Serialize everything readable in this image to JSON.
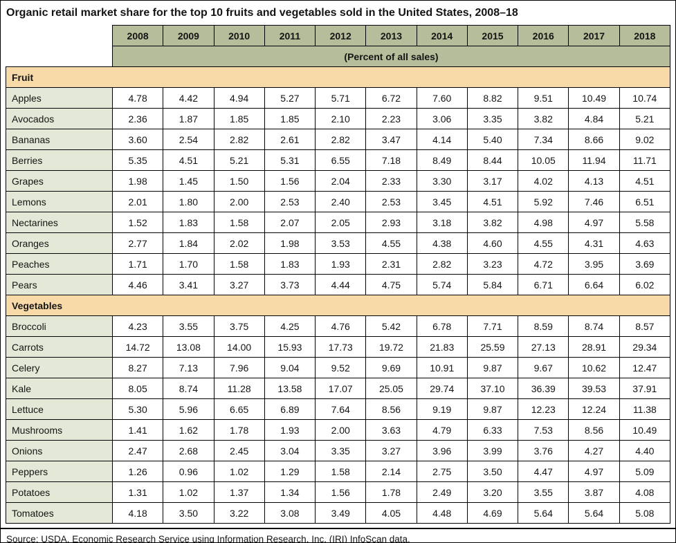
{
  "chart_data": {
    "type": "table",
    "title": "Organic retail market share for the top 10 fruits and vegetables sold in the United States, 2008–18",
    "unit_label": "(Percent of all sales)",
    "columns": [
      "2008",
      "2009",
      "2010",
      "2011",
      "2012",
      "2013",
      "2014",
      "2015",
      "2016",
      "2017",
      "2018"
    ],
    "sections": [
      {
        "name": "Fruit",
        "rows": [
          {
            "label": "Apples",
            "values": [
              4.78,
              4.42,
              4.94,
              5.27,
              5.71,
              6.72,
              7.6,
              8.82,
              9.51,
              10.49,
              10.74
            ]
          },
          {
            "label": "Avocados",
            "values": [
              2.36,
              1.87,
              1.85,
              1.85,
              2.1,
              2.23,
              3.06,
              3.35,
              3.82,
              4.84,
              5.21
            ]
          },
          {
            "label": "Bananas",
            "values": [
              3.6,
              2.54,
              2.82,
              2.61,
              2.82,
              3.47,
              4.14,
              5.4,
              7.34,
              8.66,
              9.02
            ]
          },
          {
            "label": "Berries",
            "values": [
              5.35,
              4.51,
              5.21,
              5.31,
              6.55,
              7.18,
              8.49,
              8.44,
              10.05,
              11.94,
              11.71
            ]
          },
          {
            "label": "Grapes",
            "values": [
              1.98,
              1.45,
              1.5,
              1.56,
              2.04,
              2.33,
              3.3,
              3.17,
              4.02,
              4.13,
              4.51
            ]
          },
          {
            "label": "Lemons",
            "values": [
              2.01,
              1.8,
              2.0,
              2.53,
              2.4,
              2.53,
              3.45,
              4.51,
              5.92,
              7.46,
              6.51
            ]
          },
          {
            "label": "Nectarines",
            "values": [
              1.52,
              1.83,
              1.58,
              2.07,
              2.05,
              2.93,
              3.18,
              3.82,
              4.98,
              4.97,
              5.58
            ]
          },
          {
            "label": "Oranges",
            "values": [
              2.77,
              1.84,
              2.02,
              1.98,
              3.53,
              4.55,
              4.38,
              4.6,
              4.55,
              4.31,
              4.63
            ]
          },
          {
            "label": "Peaches",
            "values": [
              1.71,
              1.7,
              1.58,
              1.83,
              1.93,
              2.31,
              2.82,
              3.23,
              4.72,
              3.95,
              3.69
            ]
          },
          {
            "label": "Pears",
            "values": [
              4.46,
              3.41,
              3.27,
              3.73,
              4.44,
              4.75,
              5.74,
              5.84,
              6.71,
              6.64,
              6.02
            ]
          }
        ]
      },
      {
        "name": "Vegetables",
        "rows": [
          {
            "label": "Broccoli",
            "values": [
              4.23,
              3.55,
              3.75,
              4.25,
              4.76,
              5.42,
              6.78,
              7.71,
              8.59,
              8.74,
              8.57
            ]
          },
          {
            "label": "Carrots",
            "values": [
              14.72,
              13.08,
              14.0,
              15.93,
              17.73,
              19.72,
              21.83,
              25.59,
              27.13,
              28.91,
              29.34
            ]
          },
          {
            "label": "Celery",
            "values": [
              8.27,
              7.13,
              7.96,
              9.04,
              9.52,
              9.69,
              10.91,
              9.87,
              9.67,
              10.62,
              12.47
            ]
          },
          {
            "label": "Kale",
            "values": [
              8.05,
              8.74,
              11.28,
              13.58,
              17.07,
              25.05,
              29.74,
              37.1,
              36.39,
              39.53,
              37.91
            ]
          },
          {
            "label": "Lettuce",
            "values": [
              5.3,
              5.96,
              6.65,
              6.89,
              7.64,
              8.56,
              9.19,
              9.87,
              12.23,
              12.24,
              11.38
            ]
          },
          {
            "label": "Mushrooms",
            "values": [
              1.41,
              1.62,
              1.78,
              1.93,
              2.0,
              3.63,
              4.79,
              6.33,
              7.53,
              8.56,
              10.49
            ]
          },
          {
            "label": "Onions",
            "values": [
              2.47,
              2.68,
              2.45,
              3.04,
              3.35,
              3.27,
              3.96,
              3.99,
              3.76,
              4.27,
              4.4
            ]
          },
          {
            "label": "Peppers",
            "values": [
              1.26,
              0.96,
              1.02,
              1.29,
              1.58,
              2.14,
              2.75,
              3.5,
              4.47,
              4.97,
              5.09
            ]
          },
          {
            "label": "Potatoes",
            "values": [
              1.31,
              1.02,
              1.37,
              1.34,
              1.56,
              1.78,
              2.49,
              3.2,
              3.55,
              3.87,
              4.08
            ]
          },
          {
            "label": "Tomatoes",
            "values": [
              4.18,
              3.5,
              3.22,
              3.08,
              3.49,
              4.05,
              4.48,
              4.69,
              5.64,
              5.64,
              5.08
            ]
          }
        ]
      }
    ],
    "source": "Source: USDA, Economic Research Service using Information Research, Inc. (IRI) InfoScan data.",
    "value_format": "2dp",
    "colors": {
      "year_header_bg": "#b5bd9b",
      "section_header_bg": "#f8d9a8",
      "row_label_bg": "#e3e8d7",
      "border": "#000000"
    }
  }
}
